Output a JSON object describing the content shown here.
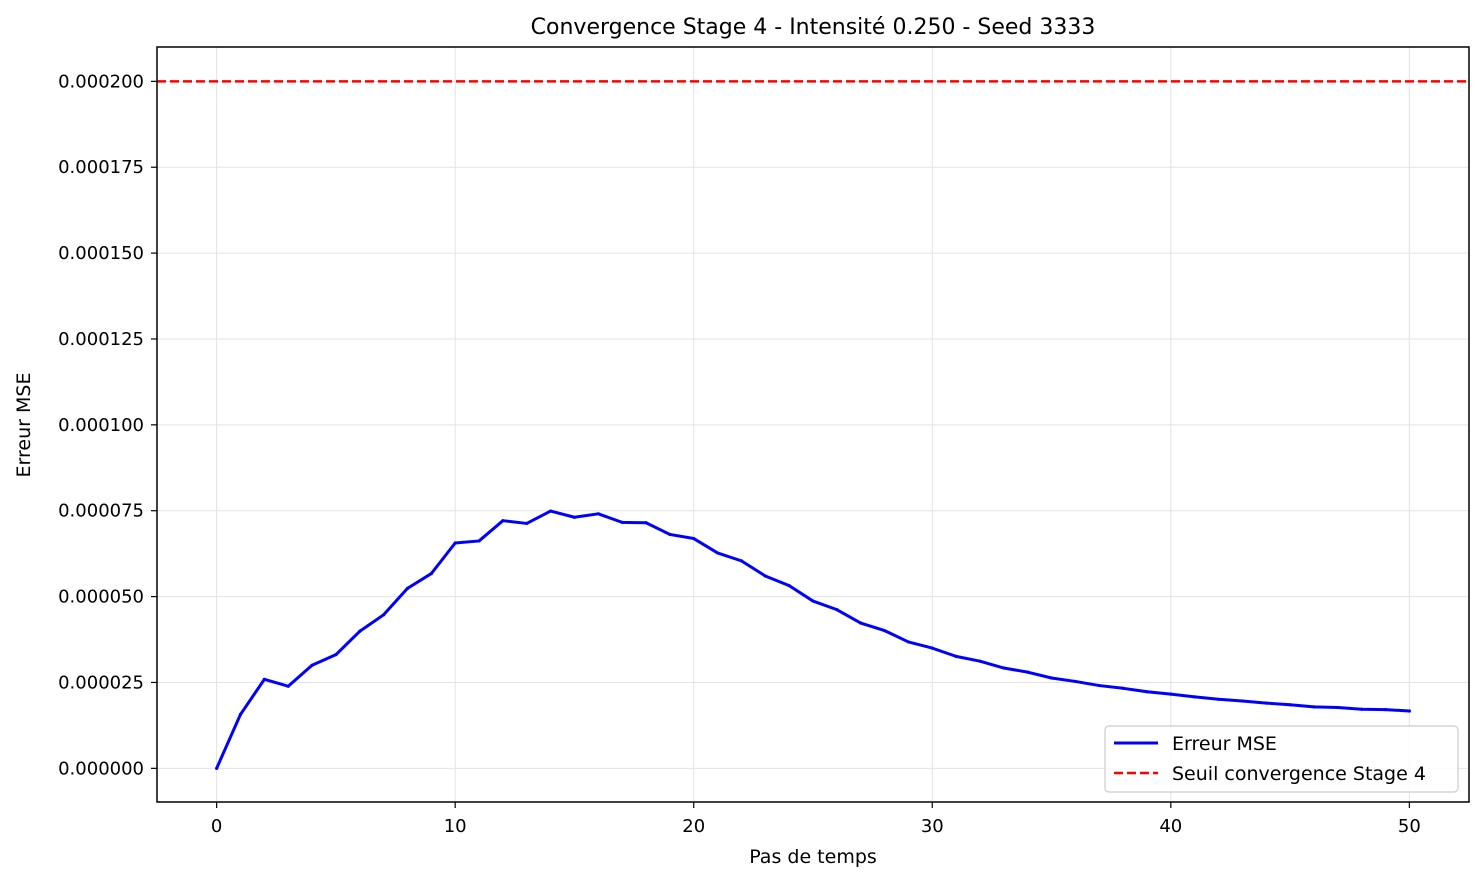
{
  "chart_data": {
    "type": "line",
    "title": "Convergence Stage 4 - Intensité 0.250 - Seed 3333",
    "xlabel": "Pas de temps",
    "ylabel": "Erreur MSE",
    "xlim": [
      -2.5,
      52.5
    ],
    "ylim": [
      -9.8e-06,
      0.00021
    ],
    "x_ticks": [
      0,
      10,
      20,
      30,
      40,
      50
    ],
    "x_tick_labels": [
      "0",
      "10",
      "20",
      "30",
      "40",
      "50"
    ],
    "y_ticks": [
      0,
      2.5e-05,
      5e-05,
      7.5e-05,
      0.0001,
      0.000125,
      0.00015,
      0.000175,
      0.0002
    ],
    "y_tick_labels": [
      "0.000000",
      "0.000025",
      "0.000050",
      "0.000075",
      "0.000100",
      "0.000125",
      "0.000150",
      "0.000175",
      "0.000200"
    ],
    "grid": true,
    "legend_position": "bottom-right",
    "series": [
      {
        "name": "Erreur MSE",
        "color": "#0000ff",
        "style": "solid",
        "x": [
          0,
          1,
          2,
          3,
          4,
          5,
          6,
          7,
          8,
          9,
          10,
          11,
          12,
          13,
          14,
          15,
          16,
          17,
          18,
          19,
          20,
          21,
          22,
          23,
          24,
          25,
          26,
          27,
          28,
          29,
          30,
          31,
          32,
          33,
          34,
          35,
          36,
          37,
          38,
          39,
          40,
          41,
          42,
          43,
          44,
          45,
          46,
          47,
          48,
          49,
          50
        ],
        "values": [
          0.0,
          1.57e-05,
          2.59e-05,
          2.39e-05,
          3e-05,
          3.31e-05,
          3.99e-05,
          4.47e-05,
          5.24e-05,
          5.67e-05,
          6.56e-05,
          6.62e-05,
          7.21e-05,
          7.13e-05,
          7.49e-05,
          7.31e-05,
          7.41e-05,
          7.16e-05,
          7.15e-05,
          6.81e-05,
          6.69e-05,
          6.27e-05,
          6.04e-05,
          5.6e-05,
          5.32e-05,
          4.87e-05,
          4.62e-05,
          4.23e-05,
          4.01e-05,
          3.68e-05,
          3.5e-05,
          3.26e-05,
          3.12e-05,
          2.92e-05,
          2.8e-05,
          2.63e-05,
          2.53e-05,
          2.41e-05,
          2.33e-05,
          2.23e-05,
          2.16e-05,
          2.08e-05,
          2.01e-05,
          1.96e-05,
          1.9e-05,
          1.85e-05,
          1.79e-05,
          1.77e-05,
          1.72e-05,
          1.71e-05,
          1.67e-05
        ]
      }
    ],
    "reference_lines": [
      {
        "name": "Seuil convergence Stage 4",
        "y": 0.0002,
        "color": "#ff0000",
        "style": "dashed"
      }
    ]
  }
}
